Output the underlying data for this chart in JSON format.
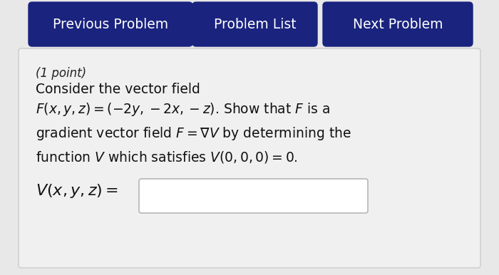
{
  "bg_color": "#e8e8e8",
  "header_bg": "#1a237e",
  "header_text_color": "#ffffff",
  "content_bg": "#f0f0f0",
  "content_border": "#cccccc",
  "input_box_bg": "#ffffff",
  "input_box_border": "#aaaaaa",
  "buttons": [
    "Previous Problem",
    "Problem List",
    "Next Problem"
  ],
  "point_text": "(1 point)",
  "line2": "Consider the vector field",
  "math_line1": "$F(x, y, z) = (-2y, -2x, -z)$. Show that $F$ is a",
  "math_line2": "gradient vector field $F = \\nabla V$ by determining the",
  "math_line3": "function $V$ which satisfies $V(0, 0, 0) = 0$.",
  "answer_label": "$V(x, y, z) =$",
  "figsize": [
    7.0,
    3.86
  ],
  "dpi": 100
}
